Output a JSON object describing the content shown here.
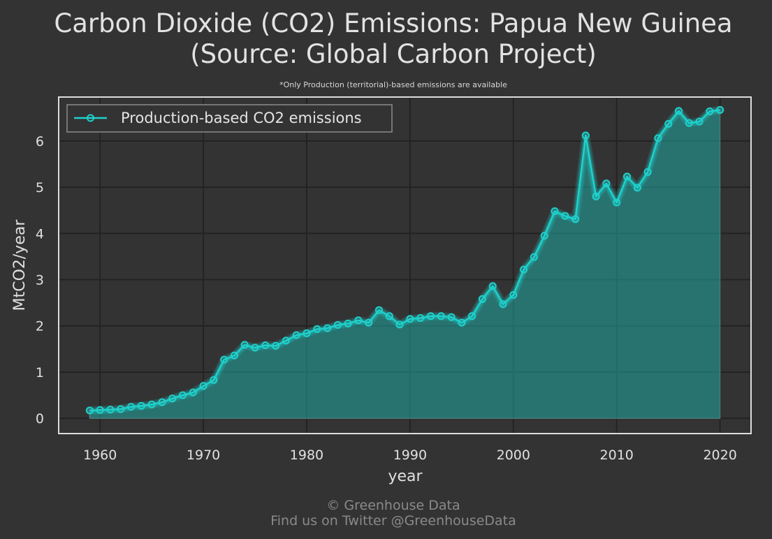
{
  "chart_data": {
    "type": "area",
    "title_lines": [
      "Carbon Dioxide (CO2) Emissions: Papua New Guinea",
      "(Source: Global Carbon Project)"
    ],
    "subtitle": "*Only Production (territorial)-based emissions are available",
    "xlabel": "year",
    "ylabel": "MtCO2/year",
    "xlim": [
      1956,
      2023
    ],
    "ylim": [
      -0.33,
      6.95
    ],
    "x_ticks": [
      1960,
      1970,
      1980,
      1990,
      2000,
      2010,
      2020
    ],
    "y_ticks": [
      0,
      1,
      2,
      3,
      4,
      5,
      6
    ],
    "grid": true,
    "legend_position": "top-left",
    "series": [
      {
        "name": "Production-based CO2 emissions",
        "color": "#1fd1cc",
        "x": [
          1959,
          1960,
          1961,
          1962,
          1963,
          1964,
          1965,
          1966,
          1967,
          1968,
          1969,
          1970,
          1971,
          1972,
          1973,
          1974,
          1975,
          1976,
          1977,
          1978,
          1979,
          1980,
          1981,
          1982,
          1983,
          1984,
          1985,
          1986,
          1987,
          1988,
          1989,
          1990,
          1991,
          1992,
          1993,
          1994,
          1995,
          1996,
          1997,
          1998,
          1999,
          2000,
          2001,
          2002,
          2003,
          2004,
          2005,
          2006,
          2007,
          2008,
          2009,
          2010,
          2011,
          2012,
          2013,
          2014,
          2015,
          2016,
          2017,
          2018,
          2019,
          2020
        ],
        "values": [
          0.17,
          0.18,
          0.19,
          0.2,
          0.25,
          0.27,
          0.3,
          0.35,
          0.43,
          0.5,
          0.56,
          0.7,
          0.83,
          1.27,
          1.36,
          1.59,
          1.53,
          1.58,
          1.57,
          1.68,
          1.8,
          1.84,
          1.93,
          1.95,
          2.02,
          2.05,
          2.12,
          2.07,
          2.34,
          2.21,
          2.03,
          2.15,
          2.17,
          2.21,
          2.21,
          2.19,
          2.07,
          2.21,
          2.58,
          2.86,
          2.47,
          2.67,
          3.22,
          3.49,
          3.95,
          4.48,
          4.38,
          4.31,
          6.12,
          4.8,
          5.08,
          4.67,
          5.23,
          4.99,
          5.33,
          6.06,
          6.37,
          6.65,
          6.39,
          6.42,
          6.64,
          6.67
        ]
      }
    ]
  },
  "footer": {
    "line1": "© Greenhouse Data",
    "line2": "Find us on Twitter @GreenhouseData"
  }
}
